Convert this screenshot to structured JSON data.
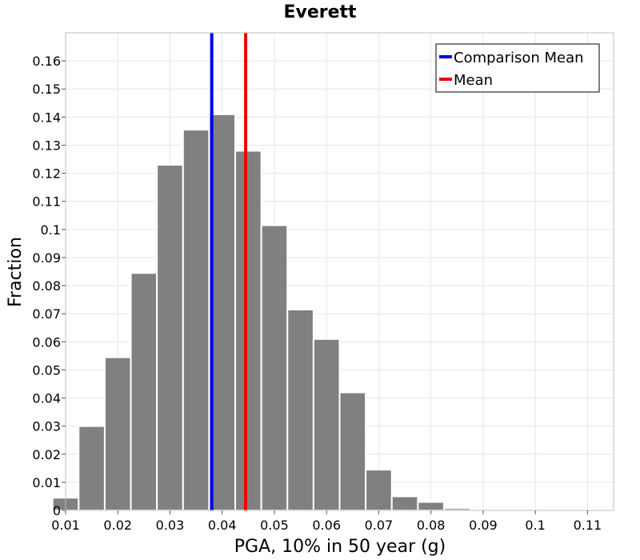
{
  "chart_data": {
    "type": "bar",
    "title": "Everett",
    "xlabel": "PGA, 10% in 50 year (g)",
    "ylabel": "Fraction",
    "xlim": [
      0.01,
      0.115
    ],
    "ylim": [
      0,
      0.17
    ],
    "xticks": [
      "0.01",
      "0.02",
      "0.03",
      "0.04",
      "0.05",
      "0.06",
      "0.07",
      "0.08",
      "0.09",
      "0.1",
      "0.11"
    ],
    "yticks": [
      "0",
      "0.01",
      "0.02",
      "0.03",
      "0.04",
      "0.05",
      "0.06",
      "0.07",
      "0.08",
      "0.09",
      "0.1",
      "0.11",
      "0.12",
      "0.13",
      "0.14",
      "0.15",
      "0.16"
    ],
    "grid": true,
    "bin_width": 0.01,
    "bins": [
      {
        "x": 0.01,
        "value": 0.0045
      },
      {
        "x": 0.015,
        "value": 0.03
      },
      {
        "x": 0.02,
        "value": 0.0545
      },
      {
        "x": 0.025,
        "value": 0.0845
      },
      {
        "x": 0.03,
        "value": 0.123
      },
      {
        "x": 0.035,
        "value": 0.1355
      },
      {
        "x": 0.04,
        "value": 0.141
      },
      {
        "x": 0.045,
        "value": 0.128
      },
      {
        "x": 0.05,
        "value": 0.1015
      },
      {
        "x": 0.055,
        "value": 0.0715
      },
      {
        "x": 0.06,
        "value": 0.061
      },
      {
        "x": 0.065,
        "value": 0.042
      },
      {
        "x": 0.07,
        "value": 0.0145
      },
      {
        "x": 0.075,
        "value": 0.005
      },
      {
        "x": 0.08,
        "value": 0.003
      },
      {
        "x": 0.085,
        "value": 0.0008
      },
      {
        "x": 0.09,
        "value": 0.0005
      },
      {
        "x": 0.095,
        "value": 0.0004
      },
      {
        "x": 0.1,
        "value": 0.0002
      },
      {
        "x": 0.105,
        "value": 0.0001
      },
      {
        "x": 0.11,
        "value": 0.0003
      }
    ],
    "lines": [
      {
        "name": "Comparison Mean",
        "x": 0.038,
        "color": "#0000ee"
      },
      {
        "name": "Mean",
        "x": 0.0445,
        "color": "#ee0000"
      }
    ],
    "legend_position": "top-right"
  }
}
